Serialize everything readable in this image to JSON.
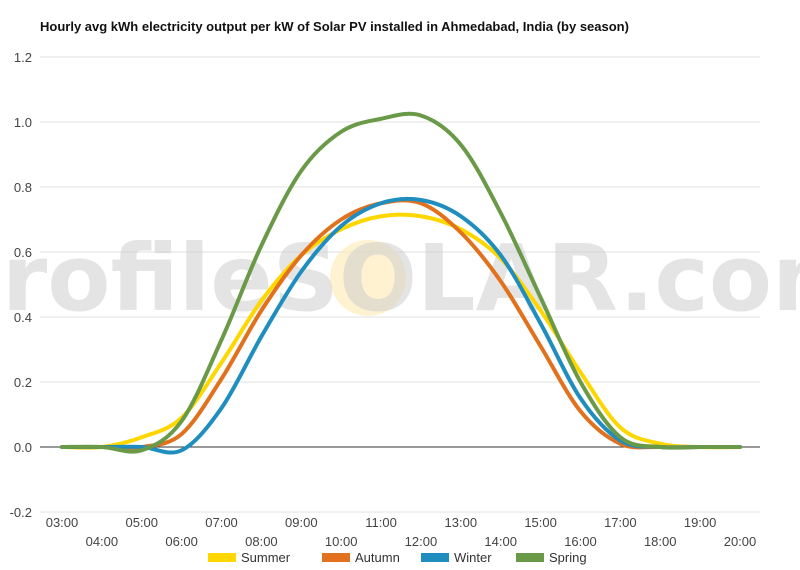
{
  "chart_data": {
    "type": "line",
    "title": "Hourly avg kWh electricity output per kW of Solar PV installed in Ahmedabad, India (by season)",
    "xlabel": "",
    "ylabel": "",
    "ylim": [
      -0.2,
      1.2
    ],
    "yticks": [
      "-0.2",
      "0.0",
      "0.2",
      "0.4",
      "0.6",
      "0.8",
      "1.0",
      "1.2"
    ],
    "x": [
      "03:00",
      "04:00",
      "05:00",
      "06:00",
      "07:00",
      "08:00",
      "09:00",
      "10:00",
      "11:00",
      "12:00",
      "13:00",
      "14:00",
      "15:00",
      "16:00",
      "17:00",
      "18:00",
      "19:00",
      "20:00"
    ],
    "grid": true,
    "legend": "bottom",
    "watermark": "profileSOLAR.com",
    "series": [
      {
        "name": "Summer",
        "color": "#ffd700",
        "values": [
          0.0,
          0.0,
          0.03,
          0.09,
          0.26,
          0.45,
          0.59,
          0.67,
          0.71,
          0.71,
          0.67,
          0.58,
          0.42,
          0.23,
          0.06,
          0.01,
          0.0,
          0.0
        ]
      },
      {
        "name": "Autumn",
        "color": "#e2711d",
        "values": [
          0.0,
          0.0,
          0.0,
          0.04,
          0.21,
          0.42,
          0.59,
          0.7,
          0.75,
          0.75,
          0.66,
          0.51,
          0.31,
          0.11,
          0.01,
          0.0,
          0.0,
          0.0
        ]
      },
      {
        "name": "Winter",
        "color": "#1f8ebf",
        "values": [
          0.0,
          0.0,
          0.0,
          -0.01,
          0.12,
          0.34,
          0.54,
          0.68,
          0.75,
          0.76,
          0.71,
          0.59,
          0.38,
          0.15,
          0.02,
          0.0,
          0.0,
          0.0
        ]
      },
      {
        "name": "Spring",
        "color": "#6a9a48",
        "values": [
          0.0,
          0.0,
          -0.01,
          0.08,
          0.33,
          0.62,
          0.85,
          0.97,
          1.01,
          1.02,
          0.93,
          0.72,
          0.46,
          0.2,
          0.03,
          0.0,
          0.0,
          0.0
        ]
      }
    ]
  }
}
